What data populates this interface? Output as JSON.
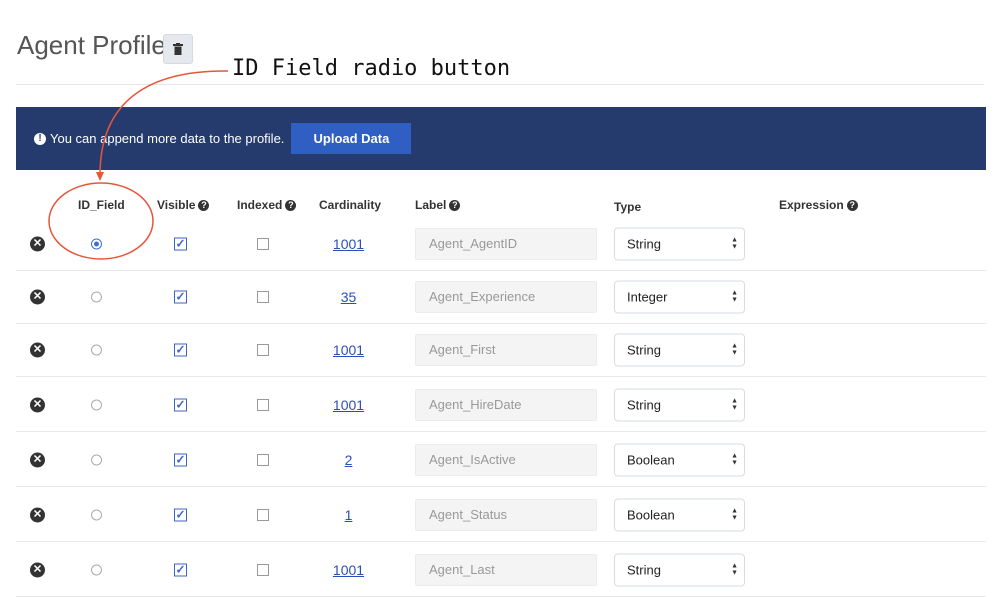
{
  "header": {
    "title": "Agent Profile",
    "delete_icon": "trash-icon"
  },
  "banner": {
    "message": "You can append more data to the profile.",
    "upload_label": "Upload Data",
    "bg_color": "#253b6e",
    "button_color": "#2f5fc2"
  },
  "columns": {
    "id_field": "ID_Field",
    "visible": "Visible",
    "indexed": "Indexed",
    "cardinality": "Cardinality",
    "label": "Label",
    "type": "Type",
    "expression": "Expression"
  },
  "rows": [
    {
      "id_field": true,
      "visible": true,
      "indexed": false,
      "cardinality": "1001",
      "label": "Agent_AgentID",
      "type": "String"
    },
    {
      "id_field": false,
      "visible": true,
      "indexed": false,
      "cardinality": "35",
      "label": "Agent_Experience",
      "type": "Integer"
    },
    {
      "id_field": false,
      "visible": true,
      "indexed": false,
      "cardinality": "1001",
      "label": "Agent_First",
      "type": "String"
    },
    {
      "id_field": false,
      "visible": true,
      "indexed": false,
      "cardinality": "1001",
      "label": "Agent_HireDate",
      "type": "String"
    },
    {
      "id_field": false,
      "visible": true,
      "indexed": false,
      "cardinality": "2",
      "label": "Agent_IsActive",
      "type": "Boolean"
    },
    {
      "id_field": false,
      "visible": true,
      "indexed": false,
      "cardinality": "1",
      "label": "Agent_Status",
      "type": "Boolean"
    },
    {
      "id_field": false,
      "visible": true,
      "indexed": false,
      "cardinality": "1001",
      "label": "Agent_Last",
      "type": "String"
    }
  ],
  "annotation": {
    "text": "ID Field radio button",
    "color": "#e8553a"
  }
}
